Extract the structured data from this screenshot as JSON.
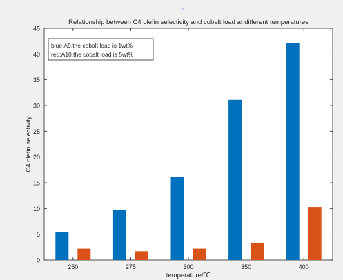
{
  "chart_data": {
    "type": "bar",
    "title": "Relationship between C4 olefin selectivity and cobalt load at different temperatures",
    "xlabel": "temperature/℃",
    "ylabel": "C4  olefin selectivity",
    "categories": [
      "250",
      "275",
      "300",
      "350",
      "400"
    ],
    "ylim": [
      0,
      45
    ],
    "yticks": [
      0,
      5,
      10,
      15,
      20,
      25,
      30,
      35,
      40,
      45
    ],
    "grid": false,
    "legend_text": [
      "blue:A9,the cobalt load is 1wt%",
      "red:A10,the cobalt load is 5wt%"
    ],
    "legend_position": "top-left",
    "series": [
      {
        "values": [
          5.4,
          9.7,
          16.1,
          31.1,
          42.1
        ],
        "color": "#0072BD"
      },
      {
        "values": [
          2.2,
          1.7,
          2.2,
          3.3,
          10.3
        ],
        "color": "#D95319"
      }
    ]
  },
  "colors": {
    "figure_background": "#f0f0f0",
    "axes_background": "#ffffff",
    "axis_color": "#262626"
  }
}
